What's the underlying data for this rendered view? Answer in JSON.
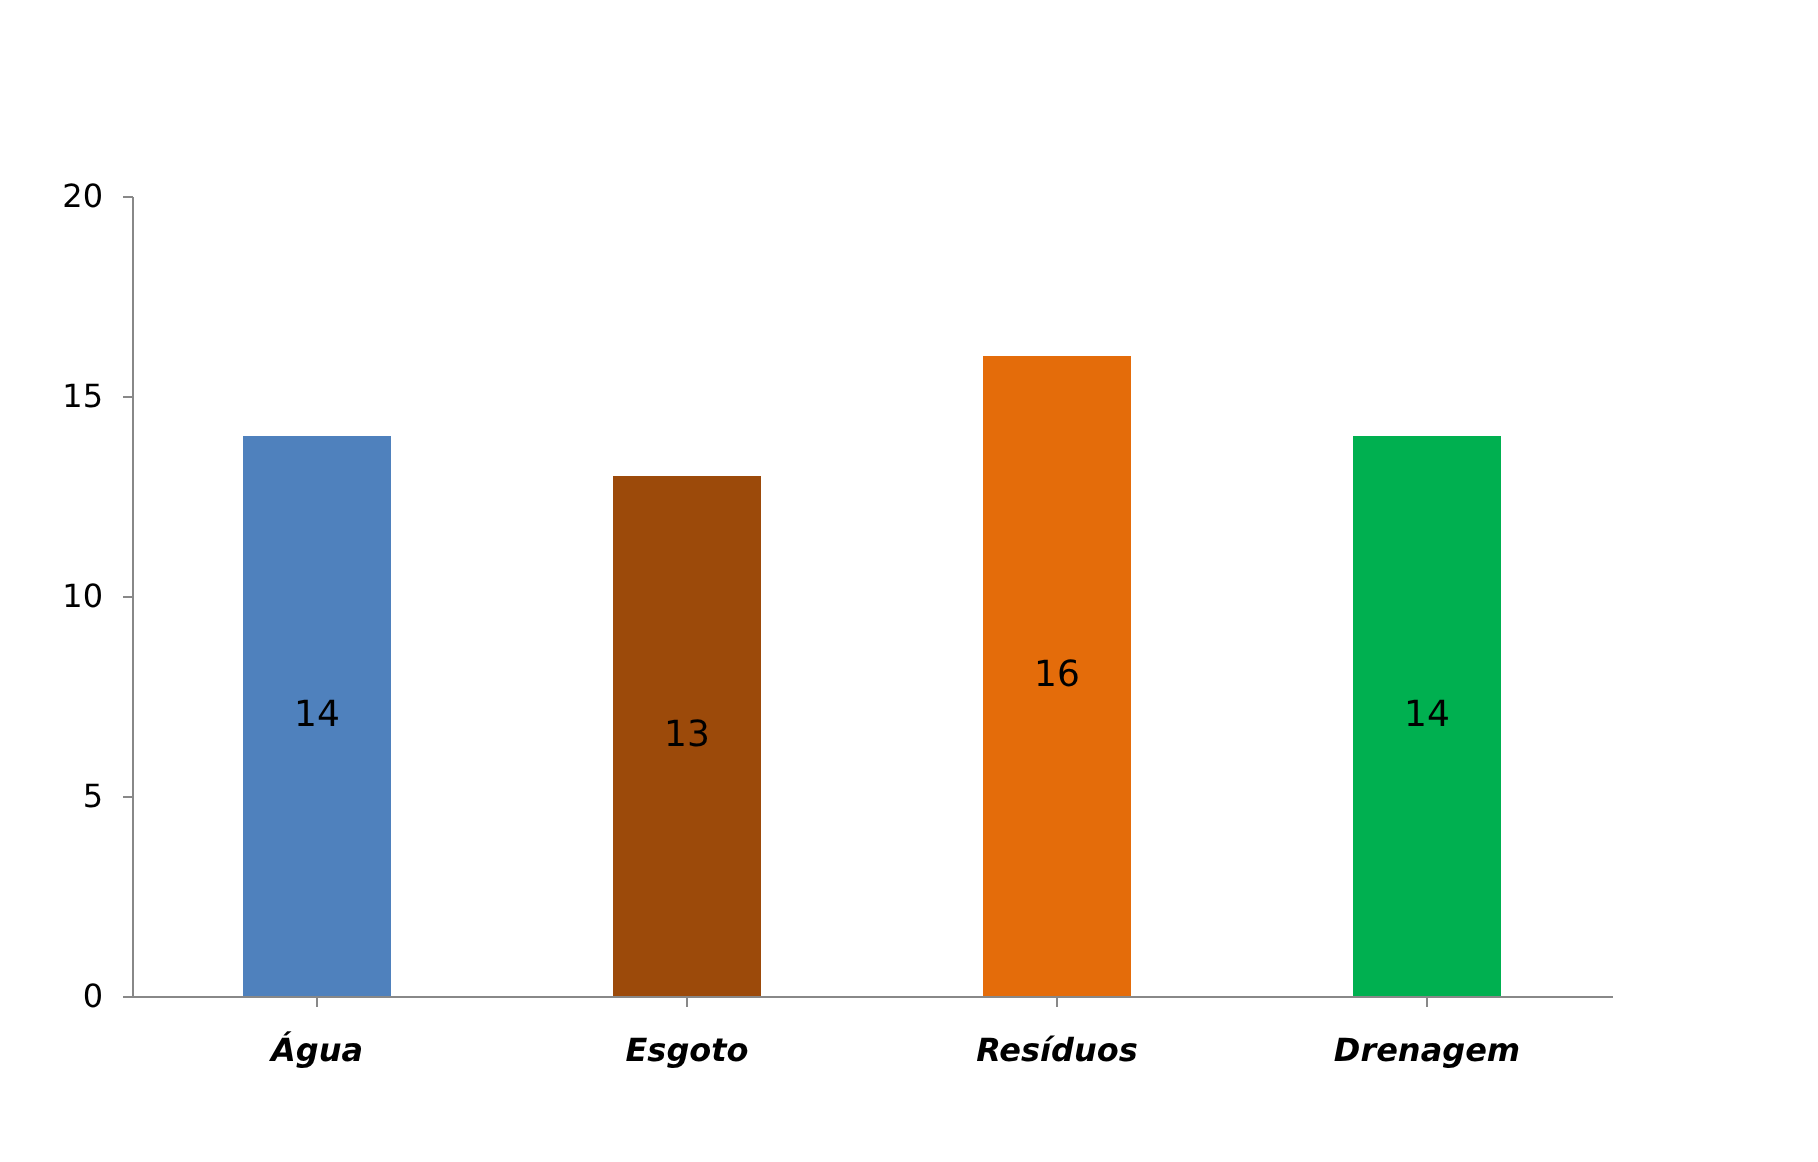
{
  "chart_data": {
    "type": "bar",
    "categories": [
      "Água",
      "Esgoto",
      "Resíduos",
      "Drenagem"
    ],
    "values": [
      14,
      13,
      16,
      14
    ],
    "colors": [
      "#4f81bd",
      "#9c4a0a",
      "#e46c0a",
      "#00b050"
    ],
    "ylim": [
      0,
      20
    ],
    "yticks": [
      0,
      5,
      10,
      15,
      20
    ],
    "data_labels": true,
    "grid": false
  }
}
